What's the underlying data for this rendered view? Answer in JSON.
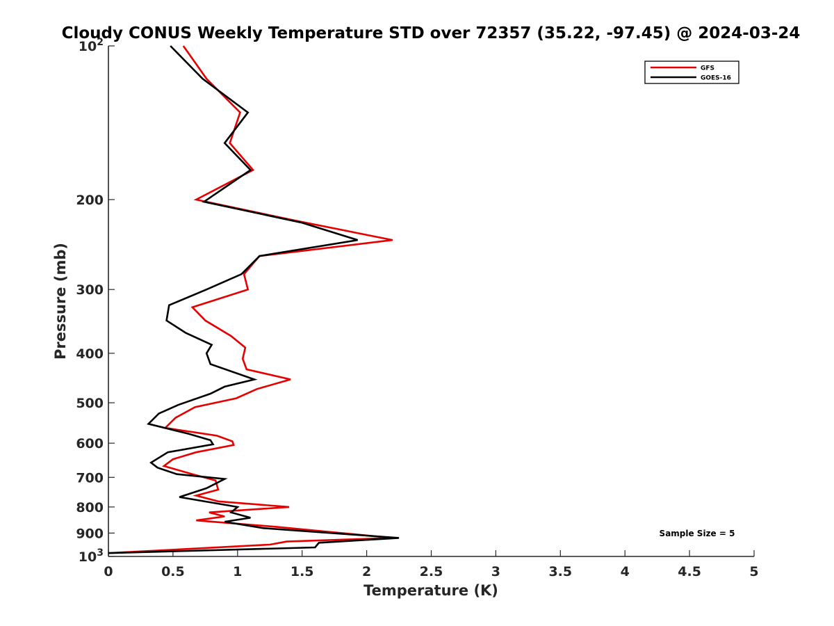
{
  "chart_data": {
    "type": "line",
    "title": "Cloudy CONUS Weekly Temperature STD over 72357 (35.22, -97.45) @ 2024-03-24",
    "xlabel": "Temperature (K)",
    "ylabel": "Pressure (mb)",
    "xlim": [
      0,
      5
    ],
    "ylim": [
      100,
      1000
    ],
    "y_scale": "log",
    "y_reversed": true,
    "grid": false,
    "legend_position": "top-right",
    "x_ticks": [
      "0",
      "0.5",
      "1",
      "1.5",
      "2",
      "2.5",
      "3",
      "3.5",
      "4",
      "4.5",
      "5"
    ],
    "y_ticks": [
      {
        "value": 100,
        "base": "10",
        "exp": "2"
      },
      {
        "value": 200,
        "label": "200"
      },
      {
        "value": 300,
        "label": "300"
      },
      {
        "value": 400,
        "label": "400"
      },
      {
        "value": 500,
        "label": "500"
      },
      {
        "value": 600,
        "label": "600"
      },
      {
        "value": 700,
        "label": "700"
      },
      {
        "value": 800,
        "label": "800"
      },
      {
        "value": 900,
        "label": "900"
      },
      {
        "value": 1000,
        "base": "10",
        "exp": "3"
      }
    ],
    "annotation": "Sample Size = 5",
    "series": [
      {
        "name": "GFS",
        "color": "#e60000",
        "points": [
          {
            "x": 0.58,
            "y": 100
          },
          {
            "x": 0.76,
            "y": 116
          },
          {
            "x": 1.02,
            "y": 135
          },
          {
            "x": 0.94,
            "y": 155
          },
          {
            "x": 1.12,
            "y": 175
          },
          {
            "x": 0.68,
            "y": 200
          },
          {
            "x": 1.45,
            "y": 220
          },
          {
            "x": 2.2,
            "y": 240
          },
          {
            "x": 1.17,
            "y": 258
          },
          {
            "x": 1.05,
            "y": 280
          },
          {
            "x": 1.08,
            "y": 300
          },
          {
            "x": 0.65,
            "y": 325
          },
          {
            "x": 0.75,
            "y": 345
          },
          {
            "x": 0.95,
            "y": 370
          },
          {
            "x": 1.06,
            "y": 390
          },
          {
            "x": 1.04,
            "y": 410
          },
          {
            "x": 1.07,
            "y": 430
          },
          {
            "x": 1.41,
            "y": 450
          },
          {
            "x": 1.15,
            "y": 470
          },
          {
            "x": 0.99,
            "y": 490
          },
          {
            "x": 0.67,
            "y": 510
          },
          {
            "x": 0.52,
            "y": 535
          },
          {
            "x": 0.44,
            "y": 560
          },
          {
            "x": 0.84,
            "y": 580
          },
          {
            "x": 0.96,
            "y": 595
          },
          {
            "x": 0.97,
            "y": 605
          },
          {
            "x": 0.68,
            "y": 625
          },
          {
            "x": 0.5,
            "y": 645
          },
          {
            "x": 0.43,
            "y": 665
          },
          {
            "x": 0.65,
            "y": 690
          },
          {
            "x": 0.83,
            "y": 710
          },
          {
            "x": 0.85,
            "y": 740
          },
          {
            "x": 0.68,
            "y": 760
          },
          {
            "x": 0.85,
            "y": 780
          },
          {
            "x": 1.4,
            "y": 800
          },
          {
            "x": 0.78,
            "y": 820
          },
          {
            "x": 0.9,
            "y": 835
          },
          {
            "x": 0.68,
            "y": 850
          },
          {
            "x": 1.3,
            "y": 875
          },
          {
            "x": 2.2,
            "y": 920
          },
          {
            "x": 1.38,
            "y": 935
          },
          {
            "x": 1.25,
            "y": 948
          },
          {
            "x": 0,
            "y": 985
          }
        ]
      },
      {
        "name": "GOES-16",
        "color": "#000000",
        "points": [
          {
            "x": 0.48,
            "y": 100
          },
          {
            "x": 0.73,
            "y": 116
          },
          {
            "x": 1.08,
            "y": 135
          },
          {
            "x": 0.9,
            "y": 155
          },
          {
            "x": 1.1,
            "y": 175
          },
          {
            "x": 0.74,
            "y": 202
          },
          {
            "x": 1.5,
            "y": 222
          },
          {
            "x": 1.93,
            "y": 240
          },
          {
            "x": 1.17,
            "y": 258
          },
          {
            "x": 1.03,
            "y": 280
          },
          {
            "x": 0.76,
            "y": 300
          },
          {
            "x": 0.47,
            "y": 322
          },
          {
            "x": 0.45,
            "y": 345
          },
          {
            "x": 0.6,
            "y": 365
          },
          {
            "x": 0.8,
            "y": 385
          },
          {
            "x": 0.76,
            "y": 400
          },
          {
            "x": 0.79,
            "y": 420
          },
          {
            "x": 1.13,
            "y": 450
          },
          {
            "x": 0.9,
            "y": 465
          },
          {
            "x": 0.79,
            "y": 480
          },
          {
            "x": 0.54,
            "y": 505
          },
          {
            "x": 0.39,
            "y": 525
          },
          {
            "x": 0.31,
            "y": 550
          },
          {
            "x": 0.62,
            "y": 575
          },
          {
            "x": 0.79,
            "y": 592
          },
          {
            "x": 0.81,
            "y": 603
          },
          {
            "x": 0.46,
            "y": 625
          },
          {
            "x": 0.33,
            "y": 655
          },
          {
            "x": 0.38,
            "y": 670
          },
          {
            "x": 0.53,
            "y": 690
          },
          {
            "x": 0.9,
            "y": 705
          },
          {
            "x": 0.76,
            "y": 735
          },
          {
            "x": 0.55,
            "y": 765
          },
          {
            "x": 1.0,
            "y": 800
          },
          {
            "x": 0.95,
            "y": 820
          },
          {
            "x": 1.1,
            "y": 840
          },
          {
            "x": 0.9,
            "y": 855
          },
          {
            "x": 1.2,
            "y": 880
          },
          {
            "x": 2.25,
            "y": 920
          },
          {
            "x": 1.63,
            "y": 940
          },
          {
            "x": 1.6,
            "y": 960
          },
          {
            "x": 0,
            "y": 985
          }
        ]
      }
    ]
  }
}
